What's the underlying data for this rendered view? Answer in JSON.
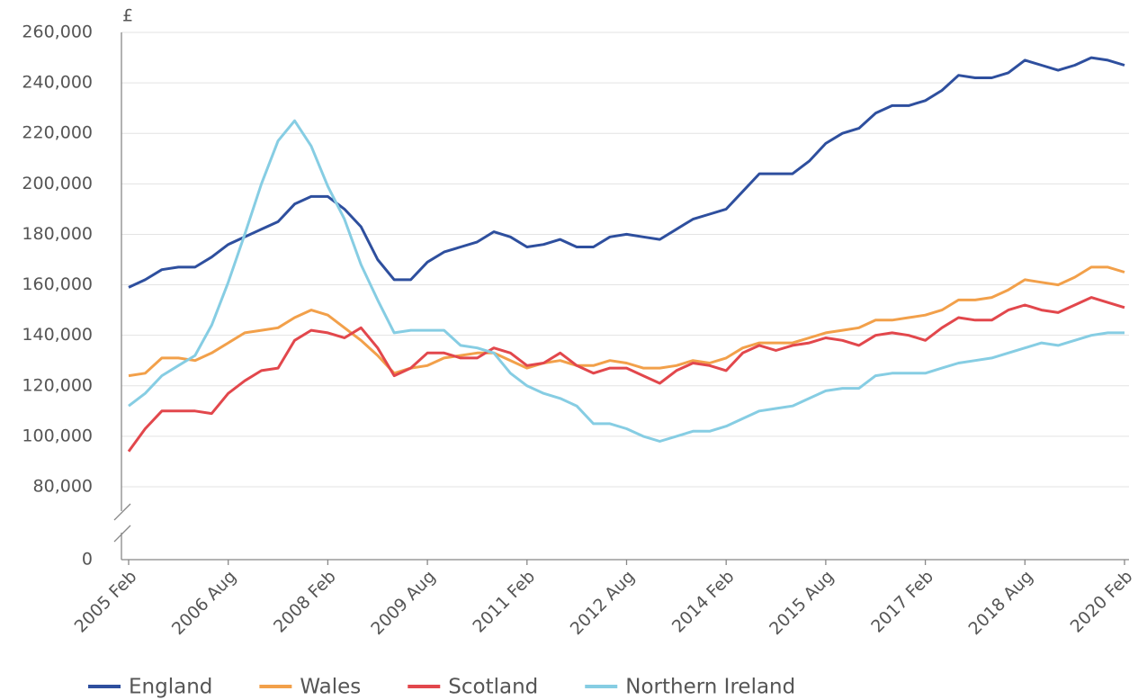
{
  "chart_data": {
    "type": "line",
    "y_label": "£",
    "categories": [
      "2005 Feb",
      null,
      null,
      null,
      null,
      null,
      "2006 Aug",
      null,
      null,
      null,
      null,
      null,
      "2008 Feb",
      null,
      null,
      null,
      null,
      null,
      "2009 Aug",
      null,
      null,
      null,
      null,
      null,
      "2011 Feb",
      null,
      null,
      null,
      null,
      null,
      "2012 Aug",
      null,
      null,
      null,
      null,
      null,
      "2014 Feb",
      null,
      null,
      null,
      null,
      null,
      "2015 Aug",
      null,
      null,
      null,
      null,
      null,
      "2017 Feb",
      null,
      null,
      null,
      null,
      null,
      "2018 Aug",
      null,
      null,
      null,
      null,
      null,
      "2020 Feb"
    ],
    "series": [
      {
        "name": "England",
        "color": "#2e4f9e",
        "values": [
          159000,
          162000,
          166000,
          167000,
          167000,
          171000,
          176000,
          179000,
          182000,
          185000,
          192000,
          195000,
          195000,
          190000,
          183000,
          170000,
          162000,
          162000,
          169000,
          173000,
          175000,
          177000,
          181000,
          179000,
          175000,
          176000,
          178000,
          175000,
          175000,
          179000,
          180000,
          179000,
          178000,
          182000,
          186000,
          188000,
          190000,
          197000,
          204000,
          204000,
          204000,
          209000,
          216000,
          220000,
          222000,
          228000,
          231000,
          231000,
          233000,
          237000,
          243000,
          242000,
          242000,
          244000,
          249000,
          247000,
          245000,
          247000,
          250000,
          249000,
          247000
        ]
      },
      {
        "name": "Wales",
        "color": "#f2a04a",
        "values": [
          124000,
          125000,
          131000,
          131000,
          130000,
          133000,
          137000,
          141000,
          142000,
          143000,
          147000,
          150000,
          148000,
          143000,
          138000,
          132000,
          125000,
          127000,
          128000,
          131000,
          132000,
          133000,
          133000,
          130000,
          127000,
          129000,
          130000,
          128000,
          128000,
          130000,
          129000,
          127000,
          127000,
          128000,
          130000,
          129000,
          131000,
          135000,
          137000,
          137000,
          137000,
          139000,
          141000,
          142000,
          143000,
          146000,
          146000,
          147000,
          148000,
          150000,
          154000,
          154000,
          155000,
          158000,
          162000,
          161000,
          160000,
          163000,
          167000,
          167000,
          165000
        ]
      },
      {
        "name": "Scotland",
        "color": "#e2474c",
        "values": [
          94000,
          103000,
          110000,
          110000,
          110000,
          109000,
          117000,
          122000,
          126000,
          127000,
          138000,
          142000,
          141000,
          139000,
          143000,
          135000,
          124000,
          127000,
          133000,
          133000,
          131000,
          131000,
          135000,
          133000,
          128000,
          129000,
          133000,
          128000,
          125000,
          127000,
          127000,
          124000,
          121000,
          126000,
          129000,
          128000,
          126000,
          133000,
          136000,
          134000,
          136000,
          137000,
          139000,
          138000,
          136000,
          140000,
          141000,
          140000,
          138000,
          143000,
          147000,
          146000,
          146000,
          150000,
          152000,
          150000,
          149000,
          152000,
          155000,
          153000,
          151000
        ]
      },
      {
        "name": "Northern Ireland",
        "color": "#86cde3",
        "values": [
          112000,
          117000,
          124000,
          128000,
          132000,
          144000,
          161000,
          180000,
          200000,
          217000,
          225000,
          215000,
          199000,
          186000,
          168000,
          154000,
          141000,
          142000,
          142000,
          142000,
          136000,
          135000,
          133000,
          125000,
          120000,
          117000,
          115000,
          112000,
          105000,
          105000,
          103000,
          100000,
          98000,
          100000,
          102000,
          102000,
          104000,
          107000,
          110000,
          111000,
          112000,
          115000,
          118000,
          119000,
          119000,
          124000,
          125000,
          125000,
          125000,
          127000,
          129000,
          130000,
          131000,
          133000,
          135000,
          137000,
          136000,
          138000,
          140000,
          141000,
          141000
        ]
      }
    ],
    "ylim": [
      0,
      260000
    ],
    "yticks": [
      0,
      {
        "value": 80000,
        "label": "80,000"
      },
      {
        "value": 100000,
        "label": "100,000"
      },
      {
        "value": 120000,
        "label": "120,000"
      },
      {
        "value": 140000,
        "label": "140,000"
      },
      {
        "value": 160000,
        "label": "160,000"
      },
      {
        "value": 180000,
        "label": "180,000"
      },
      {
        "value": 200000,
        "label": "200,000"
      },
      {
        "value": 220000,
        "label": "220,000"
      },
      {
        "value": 240000,
        "label": "240,000"
      },
      {
        "value": 260000,
        "label": "260,000"
      }
    ],
    "y_axis_break": true,
    "grid": true,
    "legend": "bottom"
  }
}
